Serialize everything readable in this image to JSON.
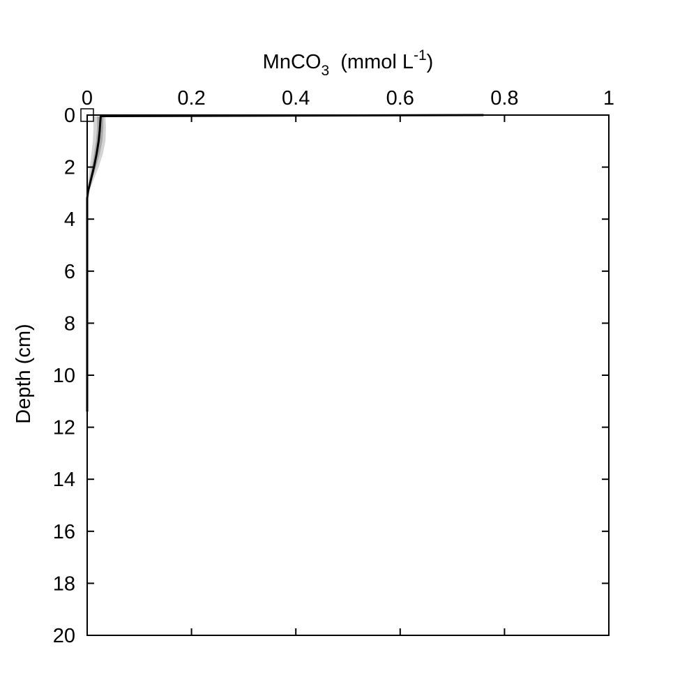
{
  "chart_data": {
    "type": "line",
    "title": "",
    "xlabel": {
      "main": "MnCO",
      "subscript": "3",
      "unit_prefix": "  (mmol L",
      "superscript": "-1",
      "unit_suffix": ")"
    },
    "ylabel": "Depth (cm)",
    "xlim": [
      0,
      1
    ],
    "ylim": [
      0,
      20
    ],
    "y_inverted": true,
    "x_axis_position": "top",
    "grid": false,
    "legend": "none",
    "xticks": [
      "0",
      "0.2",
      "0.4",
      "0.6",
      "0.8",
      "1"
    ],
    "yticks": [
      "0",
      "2",
      "4",
      "6",
      "8",
      "10",
      "12",
      "14",
      "16",
      "18",
      "20"
    ],
    "colors": {
      "model_line": "#000000",
      "envelope_outer": "#d4d4d4",
      "envelope_inner": "#a8a8a8",
      "observation_marker": "#ffffff"
    },
    "series": [
      {
        "values": [
          {
            "x": 0.76,
            "y": 0.0
          },
          {
            "x": 0.026,
            "y": 0.04
          },
          {
            "x": 0.025,
            "y": 0.3
          },
          {
            "x": 0.024,
            "y": 0.6
          },
          {
            "x": 0.022,
            "y": 1.0
          },
          {
            "x": 0.018,
            "y": 1.5
          },
          {
            "x": 0.013,
            "y": 2.0
          },
          {
            "x": 0.007,
            "y": 2.5
          },
          {
            "x": 0.002,
            "y": 2.9
          },
          {
            "x": 0.0,
            "y": 3.2
          },
          {
            "x": 0.0,
            "y": 11.4
          }
        ]
      }
    ],
    "envelope_outer": {
      "upper": [
        {
          "x": 0.035,
          "y": 0.05
        },
        {
          "x": 0.036,
          "y": 0.5
        },
        {
          "x": 0.035,
          "y": 1.0
        },
        {
          "x": 0.03,
          "y": 1.5
        },
        {
          "x": 0.022,
          "y": 2.0
        },
        {
          "x": 0.012,
          "y": 2.5
        },
        {
          "x": 0.003,
          "y": 3.0
        }
      ],
      "lower": [
        {
          "x": 0.012,
          "y": 0.05
        },
        {
          "x": 0.012,
          "y": 0.5
        },
        {
          "x": 0.011,
          "y": 1.0
        },
        {
          "x": 0.008,
          "y": 1.5
        },
        {
          "x": 0.005,
          "y": 2.0
        },
        {
          "x": 0.002,
          "y": 2.5
        },
        {
          "x": 0.0,
          "y": 3.0
        }
      ]
    },
    "envelope_inner": {
      "upper": [
        {
          "x": 0.031,
          "y": 0.05
        },
        {
          "x": 0.031,
          "y": 0.5
        },
        {
          "x": 0.029,
          "y": 1.0
        },
        {
          "x": 0.024,
          "y": 1.5
        },
        {
          "x": 0.017,
          "y": 2.0
        },
        {
          "x": 0.009,
          "y": 2.5
        },
        {
          "x": 0.002,
          "y": 3.0
        }
      ],
      "lower": [
        {
          "x": 0.019,
          "y": 0.05
        },
        {
          "x": 0.019,
          "y": 0.5
        },
        {
          "x": 0.017,
          "y": 1.0
        },
        {
          "x": 0.013,
          "y": 1.5
        },
        {
          "x": 0.009,
          "y": 2.0
        },
        {
          "x": 0.004,
          "y": 2.5
        },
        {
          "x": 0.001,
          "y": 3.0
        }
      ]
    },
    "observations": [
      {
        "x": 0.0,
        "y": 0.0
      }
    ]
  }
}
